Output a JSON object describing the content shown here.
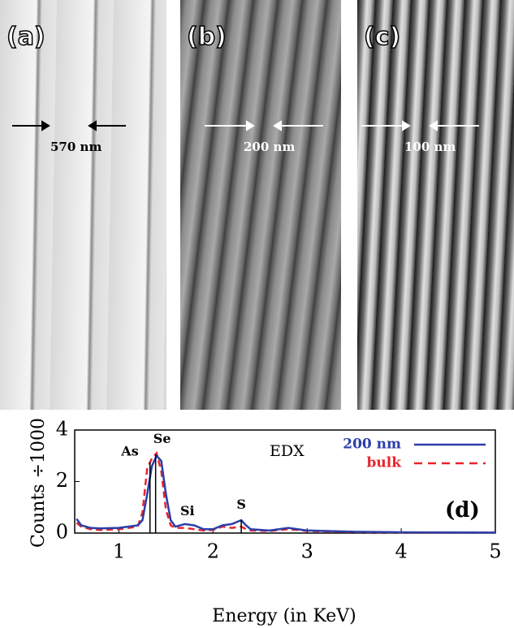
{
  "panels": [
    {
      "label": "(a)",
      "scale": "570 nm"
    },
    {
      "label": "(b)",
      "scale": "200 nm"
    },
    {
      "label": "(c)",
      "scale": "100 nm"
    }
  ],
  "chart_data": {
    "type": "line",
    "xlabel": "Energy (in KeV)",
    "ylabel": "Counts ÷1000",
    "annotations": [
      "EDX",
      "(d)",
      "Si"
    ],
    "x": [
      0.55,
      0.6,
      0.7,
      0.8,
      1.0,
      1.2,
      1.25,
      1.3,
      1.35,
      1.4,
      1.45,
      1.5,
      1.55,
      1.6,
      1.7,
      1.8,
      1.9,
      2.0,
      2.1,
      2.2,
      2.3,
      2.35,
      2.4,
      2.6,
      2.8,
      2.9,
      3.0,
      3.5,
      4.0,
      5.0
    ],
    "series": [
      {
        "name": "200 nm",
        "color": "#2b3ea8",
        "dash": false,
        "values": [
          0.55,
          0.3,
          0.2,
          0.18,
          0.2,
          0.3,
          0.5,
          1.5,
          2.6,
          3.0,
          2.8,
          1.5,
          0.5,
          0.25,
          0.35,
          0.3,
          0.15,
          0.15,
          0.3,
          0.35,
          0.5,
          0.3,
          0.15,
          0.1,
          0.2,
          0.15,
          0.1,
          0.05,
          0.03,
          0.02
        ]
      },
      {
        "name": "bulk",
        "color": "#e8242c",
        "dash": true,
        "values": [
          0.4,
          0.25,
          0.15,
          0.12,
          0.15,
          0.25,
          0.8,
          2.5,
          2.9,
          3.1,
          2.4,
          0.9,
          0.3,
          0.2,
          0.2,
          0.15,
          0.1,
          0.12,
          0.25,
          0.2,
          0.25,
          0.15,
          0.1,
          0.08,
          0.15,
          0.12,
          0.08,
          0.04,
          0.02,
          0.02
        ]
      }
    ],
    "markers": [
      {
        "label": "As",
        "x": 1.33,
        "y": 2.75
      },
      {
        "label": "Se",
        "x": 1.39,
        "y": 3.05
      },
      {
        "label": "S",
        "x": 2.3,
        "y": 0.5
      }
    ],
    "xlim": [
      0.53,
      5
    ],
    "xticks": [
      1,
      2,
      3,
      4,
      5
    ],
    "ylim": [
      0,
      4
    ],
    "yticks": [
      0,
      2,
      4
    ]
  }
}
